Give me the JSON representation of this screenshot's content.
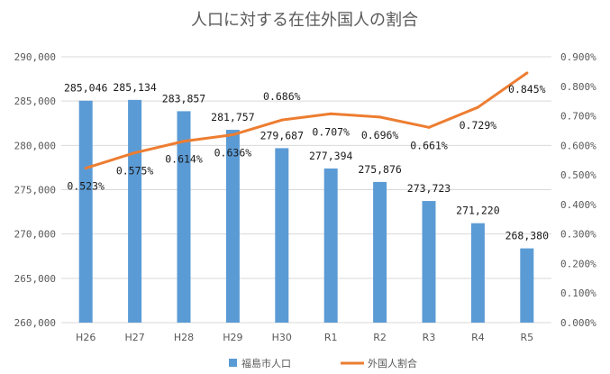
{
  "chart_data": {
    "type": "bar",
    "title": "人口に対する在住外国人の割合",
    "categories": [
      "H26",
      "H27",
      "H28",
      "H29",
      "H30",
      "R1",
      "R2",
      "R3",
      "R4",
      "R5"
    ],
    "series": [
      {
        "name": "福島市人口",
        "type": "bar",
        "axis": "left",
        "values": [
          285046,
          285134,
          283857,
          281757,
          279687,
          277394,
          275876,
          273723,
          271220,
          268380
        ],
        "labels": [
          "285,046",
          "285,134",
          "283,857",
          "281,757",
          "279,687",
          "277,394",
          "275,876",
          "273,723",
          "271,220",
          "268,380"
        ]
      },
      {
        "name": "外国人割合",
        "type": "line",
        "axis": "right",
        "values": [
          0.523,
          0.575,
          0.614,
          0.636,
          0.686,
          0.707,
          0.696,
          0.661,
          0.729,
          0.845
        ],
        "labels": [
          "0.523%",
          "0.575%",
          "0.614%",
          "0.636%",
          "0.686%",
          "0.707%",
          "0.696%",
          "0.661%",
          "0.729%",
          "0.845%"
        ]
      }
    ],
    "y_left": {
      "ylim": [
        260000,
        290000
      ],
      "ticks": [
        260000,
        265000,
        270000,
        275000,
        280000,
        285000,
        290000
      ],
      "tick_labels": [
        "260,000",
        "265,000",
        "270,000",
        "275,000",
        "280,000",
        "285,000",
        "290,000"
      ]
    },
    "y_right": {
      "ylim": [
        0,
        0.9
      ],
      "ticks": [
        0,
        0.1,
        0.2,
        0.3,
        0.4,
        0.5,
        0.6,
        0.7,
        0.8,
        0.9
      ],
      "tick_labels": [
        "0.000%",
        "0.100%",
        "0.200%",
        "0.300%",
        "0.400%",
        "0.500%",
        "0.600%",
        "0.700%",
        "0.800%",
        "0.900%"
      ]
    },
    "grid": true,
    "legend": "bottom-center",
    "colors": {
      "bar": "#5b9bd5",
      "line": "#ed7d31",
      "grid": "#d9d9d9",
      "text": "#595959"
    }
  }
}
